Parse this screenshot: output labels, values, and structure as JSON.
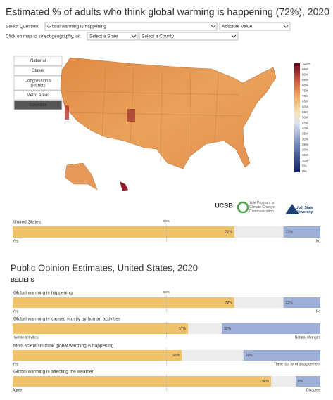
{
  "header": {
    "title": "Estimated % of adults who think global warming is happening (72%), 2020"
  },
  "controls": {
    "question_label": "Select Question:",
    "question": "Global warming is happening",
    "measure": "Absolute Value",
    "geo_label": "Click on map to select geography, or:",
    "state": "Select a State",
    "county": "Select a County"
  },
  "nav": [
    "National",
    "States",
    "Congressional Districts",
    "Metro Areas",
    "Counties"
  ],
  "legend": [
    "100%",
    "95%",
    "90%",
    "85%",
    "80%",
    "75%",
    "70%",
    "65%",
    "60%",
    "55%",
    "50%",
    "45%",
    "40%",
    "35%",
    "30%",
    "25%",
    "20%",
    "15%",
    "10%",
    "5%",
    "0%"
  ],
  "logos": [
    "UCSB",
    "Yale Program on Climate Change Communication",
    "Utah State University"
  ],
  "summary": {
    "name": "United States",
    "midpoint": "50%",
    "yes": {
      "value": 72,
      "label": "72%"
    },
    "no": {
      "value": 12,
      "label": "12%"
    },
    "left": "Yes",
    "right": "No"
  },
  "section": {
    "title": "Public Opinion Estimates, United States, 2020",
    "subtitle": "BELIEFS",
    "midpoint": "50%",
    "rows": [
      {
        "name": "Global warming is happening",
        "yes": {
          "value": 72,
          "label": "72%"
        },
        "no": {
          "value": 12,
          "label": "12%"
        },
        "left": "Yes",
        "right": "No"
      },
      {
        "name": "Global warming is caused mostly by human activities",
        "yes": {
          "value": 57,
          "label": "57%"
        },
        "no": {
          "value": 32,
          "label": "32%"
        },
        "left": "Human activities",
        "right": "Natural changes"
      },
      {
        "name": "Most scientists think global warming is happening",
        "yes": {
          "value": 55,
          "label": "55%"
        },
        "no": {
          "value": 25,
          "label": "25%"
        },
        "left": "Yes",
        "right": "There is a lot of disagreement"
      },
      {
        "name": "Global warming is affecting the weather",
        "yes": {
          "value": 84,
          "label": "84%"
        },
        "no": {
          "value": 8,
          "label": "8%"
        },
        "left": "Agree",
        "right": "Disagree"
      }
    ]
  }
}
